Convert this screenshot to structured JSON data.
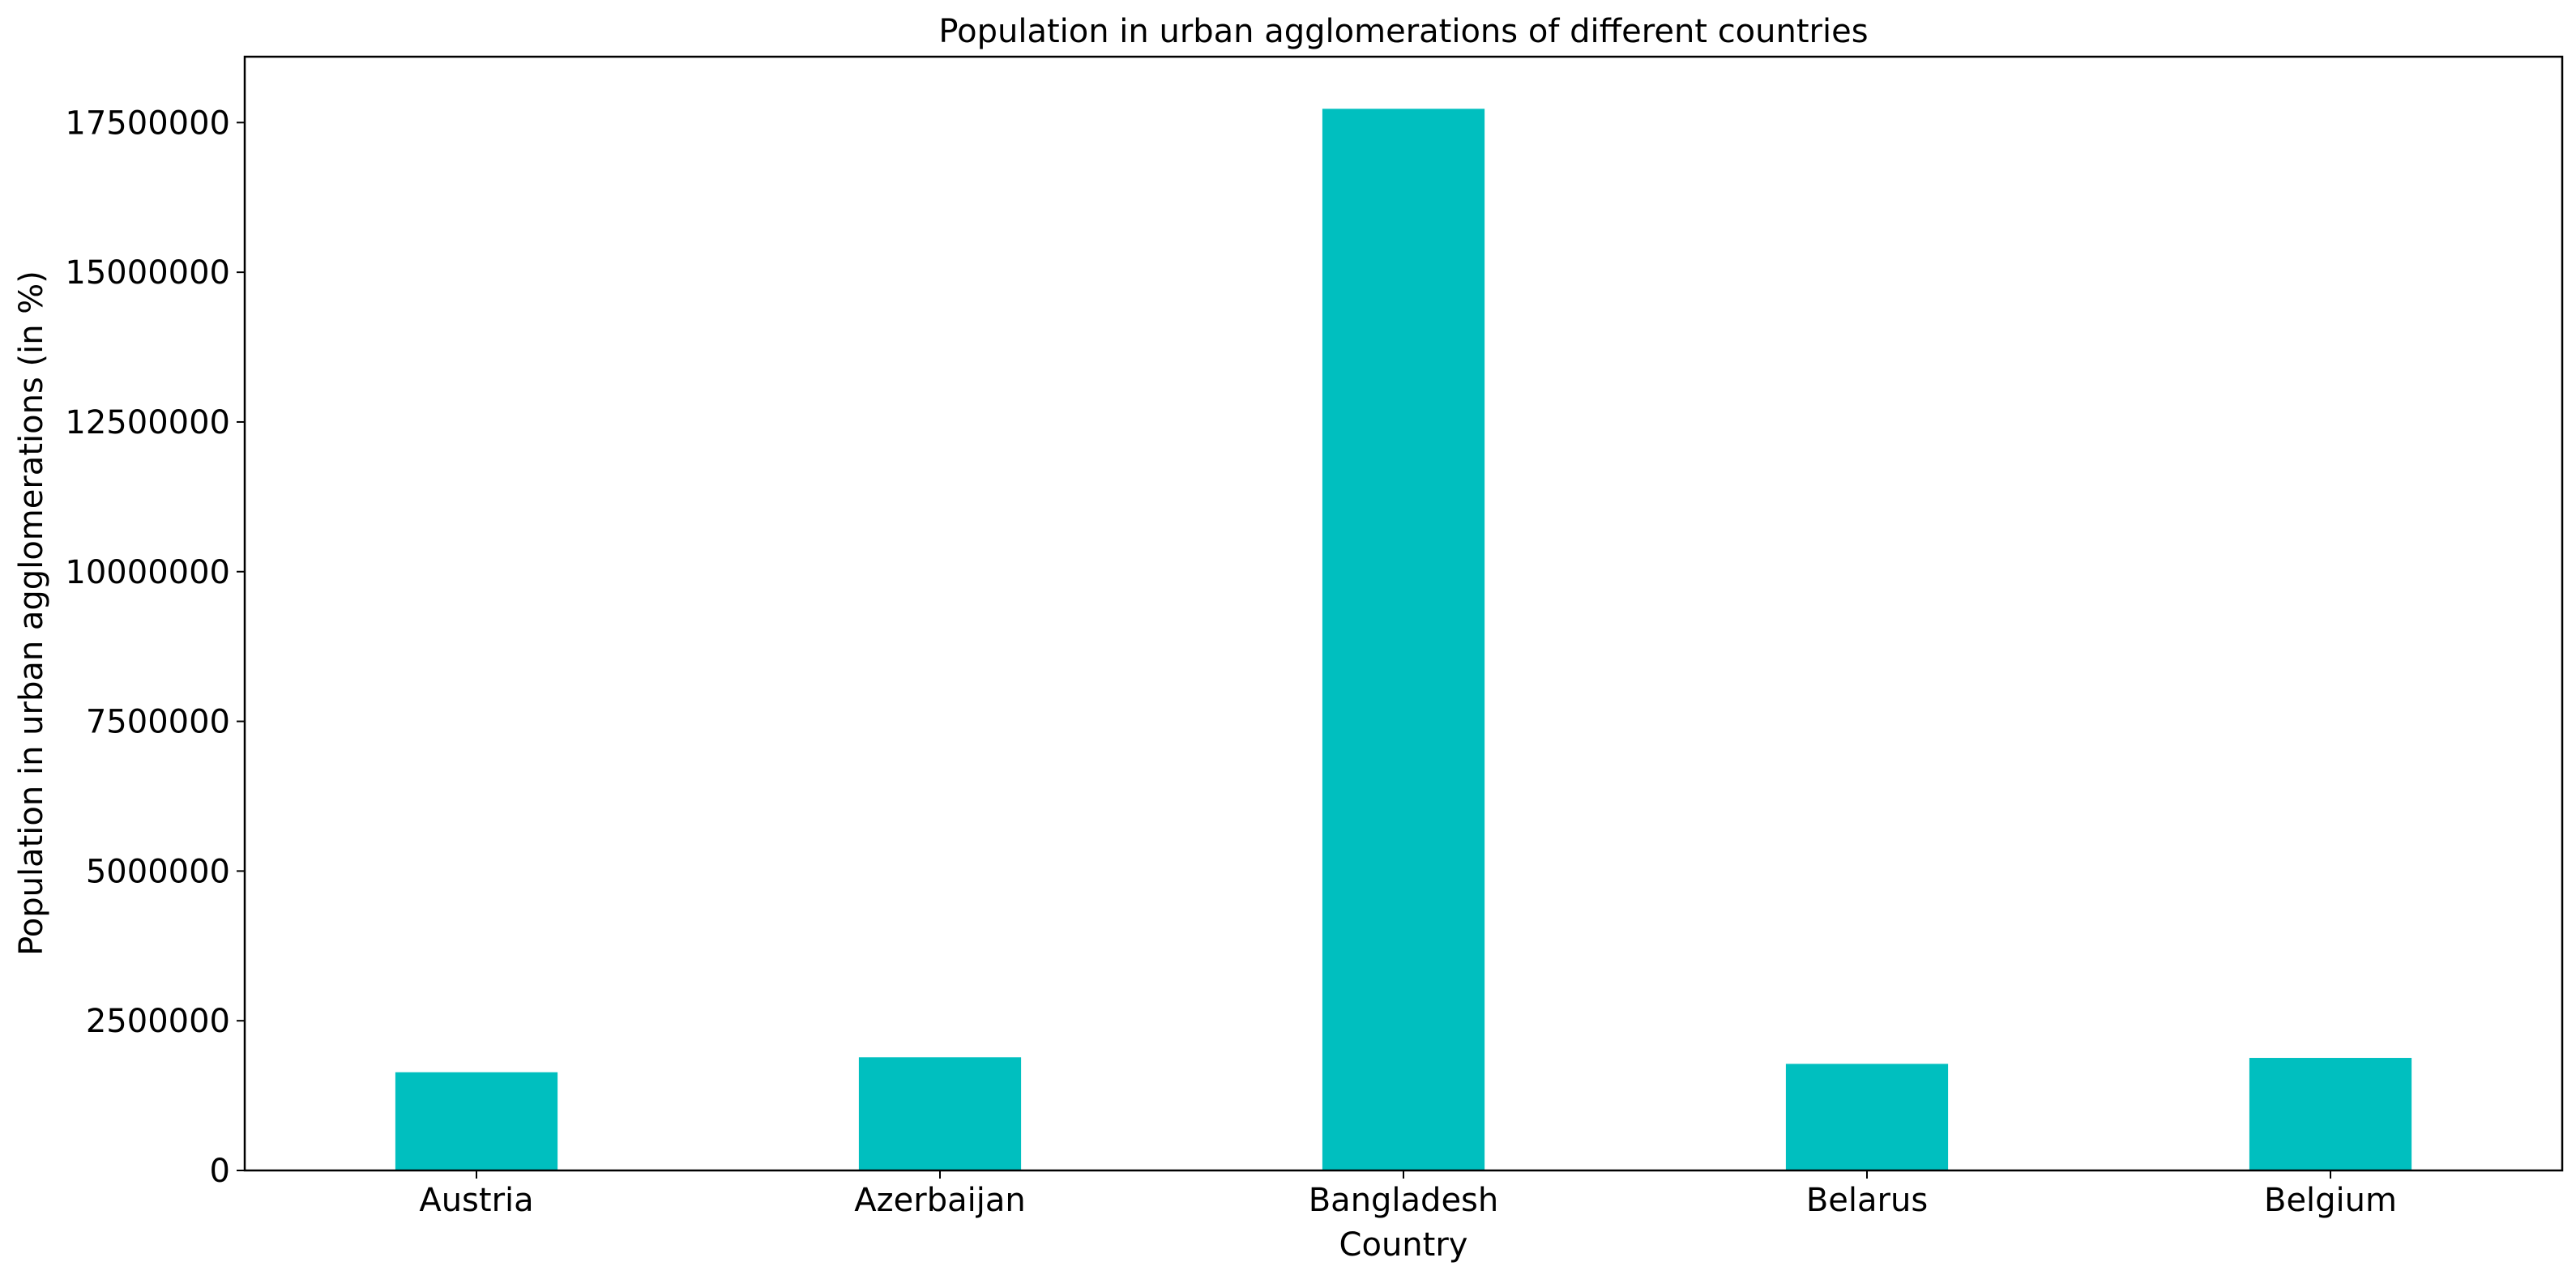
{
  "chart_data": {
    "type": "bar",
    "title": "Population in urban agglomerations of different countries",
    "xlabel": "Country",
    "ylabel": "Population in urban agglomerations (in %)",
    "categories": [
      "Austria",
      "Azerbaijan",
      "Bangladesh",
      "Belarus",
      "Belgium"
    ],
    "values": [
      1640000,
      1890000,
      17730000,
      1780000,
      1880000
    ],
    "ylim": [
      0,
      18600000
    ],
    "yticks": [
      0,
      2500000,
      5000000,
      7500000,
      10000000,
      12500000,
      15000000,
      17500000
    ],
    "ytick_labels": [
      "0",
      "2500000",
      "5000000",
      "7500000",
      "10000000",
      "12500000",
      "15000000",
      "17500000"
    ],
    "bar_color": "#00bfbf",
    "grid": false,
    "legend": "none"
  }
}
